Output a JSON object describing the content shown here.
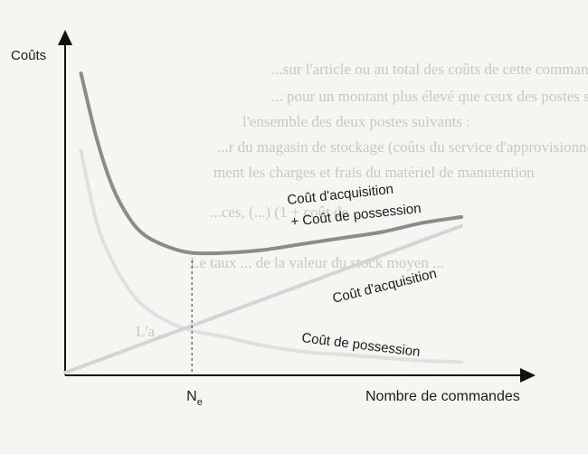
{
  "chart_data": {
    "type": "line",
    "title": "",
    "ylabel": "Coûts",
    "xlabel": "Nombre de commandes",
    "x_marker": {
      "label": "N",
      "subscript": "e"
    },
    "grid": false,
    "legend": "none",
    "series": [
      {
        "name": "Coût d'acquisition + Coût de possession",
        "label_lines": [
          "Coût d'acquisition",
          "+ Coût de possession"
        ],
        "color": "#8b8b8b",
        "stroke": 4,
        "points": [
          [
            0.04,
            1.0
          ],
          [
            0.08,
            0.78
          ],
          [
            0.12,
            0.62
          ],
          [
            0.16,
            0.52
          ],
          [
            0.2,
            0.46
          ],
          [
            0.26,
            0.42
          ],
          [
            0.32,
            0.4
          ],
          [
            0.4,
            0.4
          ],
          [
            0.5,
            0.41
          ],
          [
            0.6,
            0.43
          ],
          [
            0.7,
            0.45
          ],
          [
            0.8,
            0.47
          ],
          [
            0.9,
            0.5
          ],
          [
            1.0,
            0.52
          ]
        ]
      },
      {
        "name": "Coût d'acquisition",
        "label_lines": [
          "Coût d'acquisition"
        ],
        "color": "#d4d4d4",
        "stroke": 4,
        "points": [
          [
            0.0,
            0.0
          ],
          [
            1.0,
            0.49
          ]
        ]
      },
      {
        "name": "Coût de possession",
        "label_lines": [
          "Coût de possession"
        ],
        "color": "#e0e0e0",
        "stroke": 4,
        "points": [
          [
            0.04,
            0.74
          ],
          [
            0.08,
            0.5
          ],
          [
            0.12,
            0.37
          ],
          [
            0.16,
            0.28
          ],
          [
            0.2,
            0.22
          ],
          [
            0.26,
            0.17
          ],
          [
            0.32,
            0.14
          ],
          [
            0.4,
            0.12
          ],
          [
            0.5,
            0.09
          ],
          [
            0.6,
            0.07
          ],
          [
            0.7,
            0.06
          ],
          [
            0.8,
            0.05
          ],
          [
            0.9,
            0.04
          ],
          [
            1.0,
            0.035
          ]
        ]
      }
    ],
    "ne_x": 0.32,
    "xlim": [
      0,
      1.0
    ],
    "ylim": [
      0,
      1.1
    ]
  },
  "background": {
    "bleed_lines": [
      "...sur l'article ou au total des coûts de cette commande",
      "... pour un montant plus élevé que ceux des postes suivants",
      "l'ensemble des deux postes suivants :",
      "...r du magasin de stockage (coûts du service d'approvisionnement",
      "ment les charges et frais du matériel de manutention",
      "...ces, (...) (1 + coût de ...",
      "Le taux ... de la valeur du stock moyen ...",
      "L'a ..."
    ]
  }
}
